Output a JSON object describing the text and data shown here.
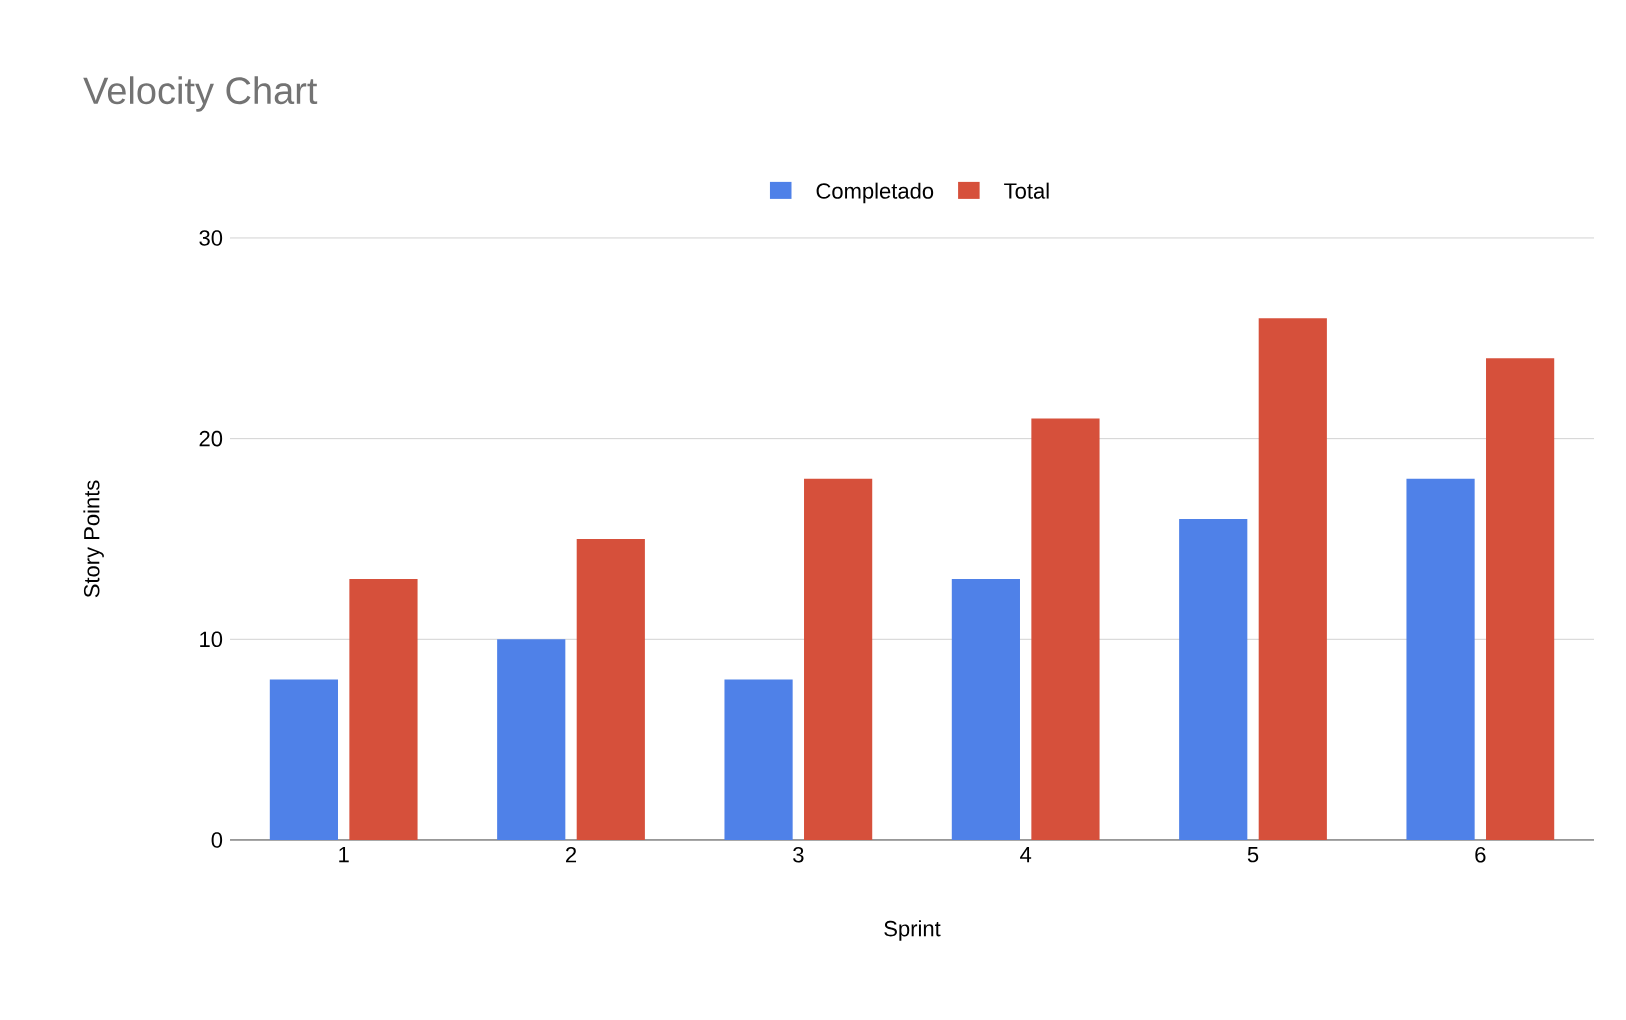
{
  "chart_data": {
    "type": "bar",
    "title": "Velocity Chart",
    "xlabel": "Sprint",
    "ylabel": "Story Points",
    "categories": [
      "1",
      "2",
      "3",
      "4",
      "5",
      "6"
    ],
    "series": [
      {
        "name": "Completado",
        "color": "#4f81e8",
        "values": [
          8,
          10,
          8,
          13,
          16,
          18
        ]
      },
      {
        "name": "Total",
        "color": "#d6503b",
        "values": [
          13,
          15,
          18,
          21,
          26,
          24
        ]
      }
    ],
    "ylim": [
      0,
      30
    ],
    "yticks": [
      0,
      10,
      20,
      30
    ],
    "grid": "y",
    "legend": "top"
  }
}
